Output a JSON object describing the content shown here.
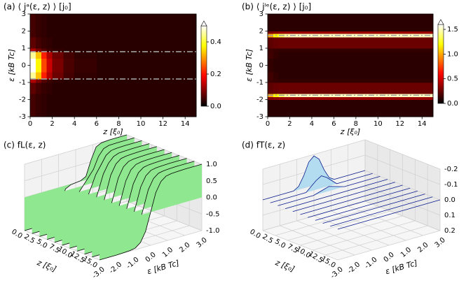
{
  "chart_data": [
    {
      "type": "heatmap",
      "title": "(a) ⟨ jᵃ(ε, z) ⟩ [j₀]",
      "x_label": "z [ξ₀]",
      "y_label": "ε [kB Tc]",
      "x_edges": [
        0,
        0.5,
        1,
        1.5,
        2,
        3,
        4,
        6,
        9,
        12,
        15
      ],
      "y_edges": [
        -3,
        -2,
        -1.85,
        -1.65,
        -1,
        -0.8,
        -0.4,
        0.4,
        0.8,
        1,
        1.65,
        1.85,
        2,
        3
      ],
      "values": [
        [
          0.05,
          0.04,
          0.035,
          0.03,
          0.03,
          0.03,
          0.03,
          0.03,
          0.03,
          0.03
        ],
        [
          0.05,
          0.04,
          0.035,
          0.03,
          0.03,
          0.03,
          0.03,
          0.03,
          0.03,
          0.03
        ],
        [
          0.05,
          0.04,
          0.035,
          0.03,
          0.03,
          0.03,
          0.03,
          0.03,
          0.03,
          0.03
        ],
        [
          0.07,
          0.05,
          0.04,
          0.035,
          0.03,
          0.03,
          0.03,
          0.03,
          0.03,
          0.03
        ],
        [
          0.13,
          0.09,
          0.06,
          0.045,
          0.035,
          0.03,
          0.03,
          0.03,
          0.03,
          0.03
        ],
        [
          0.45,
          0.33,
          0.21,
          0.13,
          0.08,
          0.05,
          0.035,
          0.03,
          0.03,
          0.03
        ],
        [
          0.5,
          0.37,
          0.24,
          0.15,
          0.09,
          0.055,
          0.04,
          0.03,
          0.03,
          0.03
        ],
        [
          0.45,
          0.33,
          0.21,
          0.13,
          0.08,
          0.05,
          0.035,
          0.03,
          0.03,
          0.03
        ],
        [
          0.13,
          0.09,
          0.06,
          0.045,
          0.035,
          0.03,
          0.03,
          0.03,
          0.03,
          0.03
        ],
        [
          0.07,
          0.05,
          0.04,
          0.035,
          0.03,
          0.03,
          0.03,
          0.03,
          0.03,
          0.03
        ],
        [
          0.05,
          0.04,
          0.035,
          0.03,
          0.03,
          0.03,
          0.03,
          0.03,
          0.03,
          0.03
        ],
        [
          0.05,
          0.04,
          0.035,
          0.03,
          0.03,
          0.03,
          0.03,
          0.03,
          0.03,
          0.03
        ],
        [
          0.05,
          0.04,
          0.035,
          0.03,
          0.03,
          0.03,
          0.03,
          0.03,
          0.03,
          0.03
        ]
      ],
      "xlim": [
        0,
        15
      ],
      "ylim": [
        -3,
        3
      ],
      "xticks": [
        0,
        2,
        4,
        6,
        8,
        10,
        12,
        14
      ],
      "yticks": [
        -3,
        -2,
        -1,
        0,
        1,
        2,
        3
      ],
      "colormap": "hot",
      "clim": [
        0,
        0.5
      ],
      "cticks": [
        {
          "value": 0,
          "label": "0.0"
        },
        0.2,
        0.4
      ],
      "hlines": [
        -0.8,
        0.8
      ],
      "hline_color": "#a0a0a0"
    },
    {
      "type": "heatmap",
      "title": "(b) ⟨ jˡᵉ(ε, z) ⟩ [j₀]",
      "x_label": "z [ξ₀]",
      "y_label": "ε [kB Tc]",
      "x_edges": [
        0,
        0.5,
        1,
        1.5,
        2,
        3,
        4,
        6,
        9,
        12,
        15
      ],
      "y_edges": [
        -3,
        -2,
        -1.85,
        -1.65,
        -1,
        -0.8,
        -0.4,
        0.4,
        0.8,
        1,
        1.65,
        1.85,
        2,
        3
      ],
      "values": [
        [
          0.1,
          0.1,
          0.1,
          0.1,
          0.1,
          0.1,
          0.1,
          0.1,
          0.1,
          0.1
        ],
        [
          0.3,
          0.32,
          0.35,
          0.36,
          0.36,
          0.36,
          0.36,
          0.36,
          0.36,
          0.36
        ],
        [
          1.0,
          1.2,
          1.35,
          1.45,
          1.5,
          1.5,
          1.5,
          1.5,
          1.5,
          1.5
        ],
        [
          0.22,
          0.24,
          0.25,
          0.25,
          0.25,
          0.25,
          0.25,
          0.25,
          0.25,
          0.25
        ],
        [
          0.14,
          0.13,
          0.12,
          0.12,
          0.12,
          0.12,
          0.12,
          0.12,
          0.12,
          0.12
        ],
        [
          0.15,
          0.12,
          0.1,
          0.1,
          0.1,
          0.1,
          0.1,
          0.1,
          0.1,
          0.1
        ],
        [
          0.12,
          0.1,
          0.1,
          0.1,
          0.1,
          0.1,
          0.1,
          0.1,
          0.1,
          0.1
        ],
        [
          0.15,
          0.12,
          0.1,
          0.1,
          0.1,
          0.1,
          0.1,
          0.1,
          0.1,
          0.1
        ],
        [
          0.14,
          0.13,
          0.12,
          0.12,
          0.12,
          0.12,
          0.12,
          0.12,
          0.12,
          0.12
        ],
        [
          0.22,
          0.24,
          0.25,
          0.25,
          0.25,
          0.25,
          0.25,
          0.25,
          0.25,
          0.25
        ],
        [
          1.0,
          1.2,
          1.35,
          1.45,
          1.5,
          1.5,
          1.5,
          1.5,
          1.5,
          1.5
        ],
        [
          0.3,
          0.32,
          0.35,
          0.36,
          0.36,
          0.36,
          0.36,
          0.36,
          0.36,
          0.36
        ],
        [
          0.1,
          0.1,
          0.1,
          0.1,
          0.1,
          0.1,
          0.1,
          0.1,
          0.1,
          0.1
        ]
      ],
      "xlim": [
        0,
        15
      ],
      "ylim": [
        -3,
        3
      ],
      "xticks": [
        0,
        2,
        4,
        6,
        8,
        10,
        12,
        14
      ],
      "yticks": [
        -3,
        -2,
        -1,
        0,
        1,
        2,
        3
      ],
      "colormap": "hot",
      "clim": [
        0,
        1.6
      ],
      "cticks": [
        {
          "value": 0,
          "label": "0.0"
        },
        0.5,
        {
          "value": 1,
          "label": "1.0"
        },
        1.5
      ],
      "hlines": [
        -1.75,
        1.75
      ],
      "hline_color": "#a0a0a0"
    },
    {
      "type": "waterfall3d",
      "title": "(c) fL(ε, z)",
      "x_label": "ε [kB Tc]",
      "z_label": "z [ξ₀]",
      "x": [
        -3,
        -2.5,
        -2,
        -1.5,
        -1.2,
        -0.9,
        -0.6,
        -0.3,
        0,
        0.3,
        0.6,
        0.9,
        1.2,
        1.5,
        2,
        2.5,
        3
      ],
      "z": [
        0,
        1.5,
        3,
        4.5,
        6,
        7.5,
        9,
        10.5,
        12,
        13.5,
        15
      ],
      "values": [
        [
          -1,
          -1,
          -1,
          -0.98,
          -0.9,
          -0.55,
          -0.1,
          -0.02,
          0,
          0.02,
          0.1,
          0.55,
          0.9,
          0.98,
          1,
          1,
          1
        ],
        [
          -1,
          -1,
          -1,
          -0.99,
          -0.94,
          -0.75,
          -0.4,
          -0.2,
          0,
          0.2,
          0.4,
          0.75,
          0.94,
          0.99,
          1,
          1,
          1
        ],
        [
          -1,
          -1,
          -1,
          -0.99,
          -0.97,
          -0.87,
          -0.62,
          -0.38,
          0,
          0.38,
          0.62,
          0.87,
          0.97,
          0.99,
          1,
          1,
          1
        ],
        [
          -1,
          -1,
          -1,
          -0.99,
          -0.98,
          -0.92,
          -0.76,
          -0.48,
          0,
          0.48,
          0.76,
          0.92,
          0.98,
          0.99,
          1,
          1,
          1
        ],
        [
          -1,
          -1,
          -1,
          -0.99,
          -0.98,
          -0.95,
          -0.83,
          -0.54,
          0,
          0.54,
          0.83,
          0.95,
          0.98,
          0.99,
          1,
          1,
          1
        ],
        [
          -1,
          -1,
          -1,
          -0.99,
          -0.98,
          -0.95,
          -0.83,
          -0.54,
          0,
          0.54,
          0.83,
          0.95,
          0.98,
          0.99,
          1,
          1,
          1
        ],
        [
          -1,
          -1,
          -1,
          -0.99,
          -0.98,
          -0.95,
          -0.83,
          -0.54,
          0,
          0.54,
          0.83,
          0.95,
          0.98,
          0.99,
          1,
          1,
          1
        ],
        [
          -1,
          -1,
          -1,
          -0.99,
          -0.98,
          -0.95,
          -0.83,
          -0.54,
          0,
          0.54,
          0.83,
          0.95,
          0.98,
          0.99,
          1,
          1,
          1
        ],
        [
          -1,
          -1,
          -1,
          -0.99,
          -0.98,
          -0.95,
          -0.83,
          -0.54,
          0,
          0.54,
          0.83,
          0.95,
          0.98,
          0.99,
          1,
          1,
          1
        ],
        [
          -1,
          -1,
          -1,
          -0.99,
          -0.98,
          -0.95,
          -0.83,
          -0.54,
          0,
          0.54,
          0.83,
          0.95,
          0.98,
          0.99,
          1,
          1,
          1
        ],
        [
          -1,
          -1,
          -1,
          -0.99,
          -0.98,
          -0.95,
          -0.83,
          -0.54,
          0,
          0.54,
          0.83,
          0.95,
          0.98,
          0.99,
          1,
          1,
          1
        ]
      ],
      "xlim": [
        -3,
        3
      ],
      "zlim": [
        0,
        15
      ],
      "vlim": [
        -1,
        1
      ],
      "xticks": [
        {
          "value": -3,
          "label": "-3.0"
        },
        {
          "value": -2,
          "label": "-2.0"
        },
        {
          "value": -1,
          "label": "-1.0"
        },
        {
          "value": 0,
          "label": "0.0"
        },
        {
          "value": 1,
          "label": "1.0"
        },
        {
          "value": 2,
          "label": "2.0"
        },
        {
          "value": 3,
          "label": "3.0"
        }
      ],
      "zticks": [
        {
          "value": 0,
          "label": "0.0"
        },
        2.5,
        {
          "value": 5,
          "label": "5.0"
        },
        7.5,
        {
          "value": 10,
          "label": "10.0"
        },
        12.5,
        {
          "value": 15,
          "label": "15.0"
        }
      ],
      "vticks": [
        {
          "value": -1,
          "label": "-1.0"
        },
        -0.5,
        {
          "value": 0,
          "label": "0.0"
        },
        0.5,
        {
          "value": 1,
          "label": "1.0"
        }
      ],
      "fill_color": "#8fe88f",
      "line_color": "#000000"
    },
    {
      "type": "waterfall3d",
      "title": "(d) fT(ε, z)",
      "x_label": "ε [kB Tc]",
      "z_label": "z [ξ₀]",
      "x": [
        -3,
        -2.5,
        -2,
        -1.5,
        -1.2,
        -0.9,
        -0.6,
        -0.3,
        0,
        0.3,
        0.6,
        0.9,
        1.2,
        1.5,
        2,
        2.5,
        3
      ],
      "z": [
        0,
        1.5,
        3,
        4.5,
        6,
        7.5,
        9,
        10.5,
        12,
        13.5,
        15
      ],
      "values": [
        [
          0,
          0,
          0,
          0,
          0,
          -0.02,
          -0.08,
          -0.16,
          -0.19,
          -0.16,
          -0.08,
          -0.02,
          0,
          0,
          0,
          0,
          0
        ],
        [
          0,
          0,
          0,
          0,
          0,
          0,
          -0.03,
          -0.06,
          -0.08,
          -0.06,
          -0.03,
          0,
          0,
          0,
          0,
          0,
          0
        ],
        [
          0,
          0,
          0,
          0,
          0,
          0,
          -0.01,
          -0.02,
          -0.03,
          -0.02,
          -0.01,
          0,
          0,
          0,
          0,
          0,
          0
        ],
        [
          0,
          0,
          0,
          0,
          0,
          0,
          0,
          0,
          0,
          0,
          0,
          0,
          0,
          0,
          0,
          0,
          0
        ],
        [
          0,
          0,
          0,
          0,
          0,
          0,
          0,
          0,
          0,
          0,
          0,
          0,
          0,
          0,
          0,
          0,
          0
        ],
        [
          0,
          0,
          0,
          0,
          0,
          0,
          0,
          0,
          0,
          0,
          0,
          0,
          0,
          0,
          0,
          0,
          0
        ],
        [
          0,
          0,
          0,
          0,
          0,
          0,
          0,
          0,
          0,
          0,
          0,
          0,
          0,
          0,
          0,
          0,
          0
        ],
        [
          0,
          0,
          0,
          0,
          0,
          0,
          0,
          0,
          0,
          0,
          0,
          0,
          0,
          0,
          0,
          0,
          0
        ],
        [
          0,
          0,
          0,
          0,
          0,
          0,
          0,
          0,
          0,
          0,
          0,
          0,
          0,
          0,
          0,
          0,
          0
        ],
        [
          0,
          0,
          0,
          0,
          0,
          0,
          0,
          0,
          0,
          0,
          0,
          0,
          0,
          0,
          0,
          0,
          0
        ],
        [
          0,
          0,
          0,
          0,
          0,
          0,
          0,
          0,
          0,
          0,
          0,
          0,
          0,
          0,
          0,
          0,
          0
        ]
      ],
      "xlim": [
        -3,
        3
      ],
      "zlim": [
        0,
        15
      ],
      "vlim": [
        0.2,
        -0.2
      ],
      "xticks": [
        {
          "value": -3,
          "label": "-3.0"
        },
        {
          "value": -2,
          "label": "-2.0"
        },
        {
          "value": -1,
          "label": "-1.0"
        },
        {
          "value": 0,
          "label": "0.0"
        },
        {
          "value": 1,
          "label": "1.0"
        },
        {
          "value": 2,
          "label": "2.0"
        },
        {
          "value": 3,
          "label": "3.0"
        }
      ],
      "zticks": [
        {
          "value": 0,
          "label": "0.0"
        },
        2.5,
        {
          "value": 5,
          "label": "5.0"
        },
        7.5,
        {
          "value": 10,
          "label": "10.0"
        },
        12.5,
        {
          "value": 15,
          "label": "15.0"
        }
      ],
      "vticks": [
        -0.2,
        -0.1,
        {
          "value": 0,
          "label": "0.0"
        },
        0.1,
        0.2
      ],
      "fill_color": "#b4dcf0",
      "line_color": "#0a1a8c"
    }
  ]
}
